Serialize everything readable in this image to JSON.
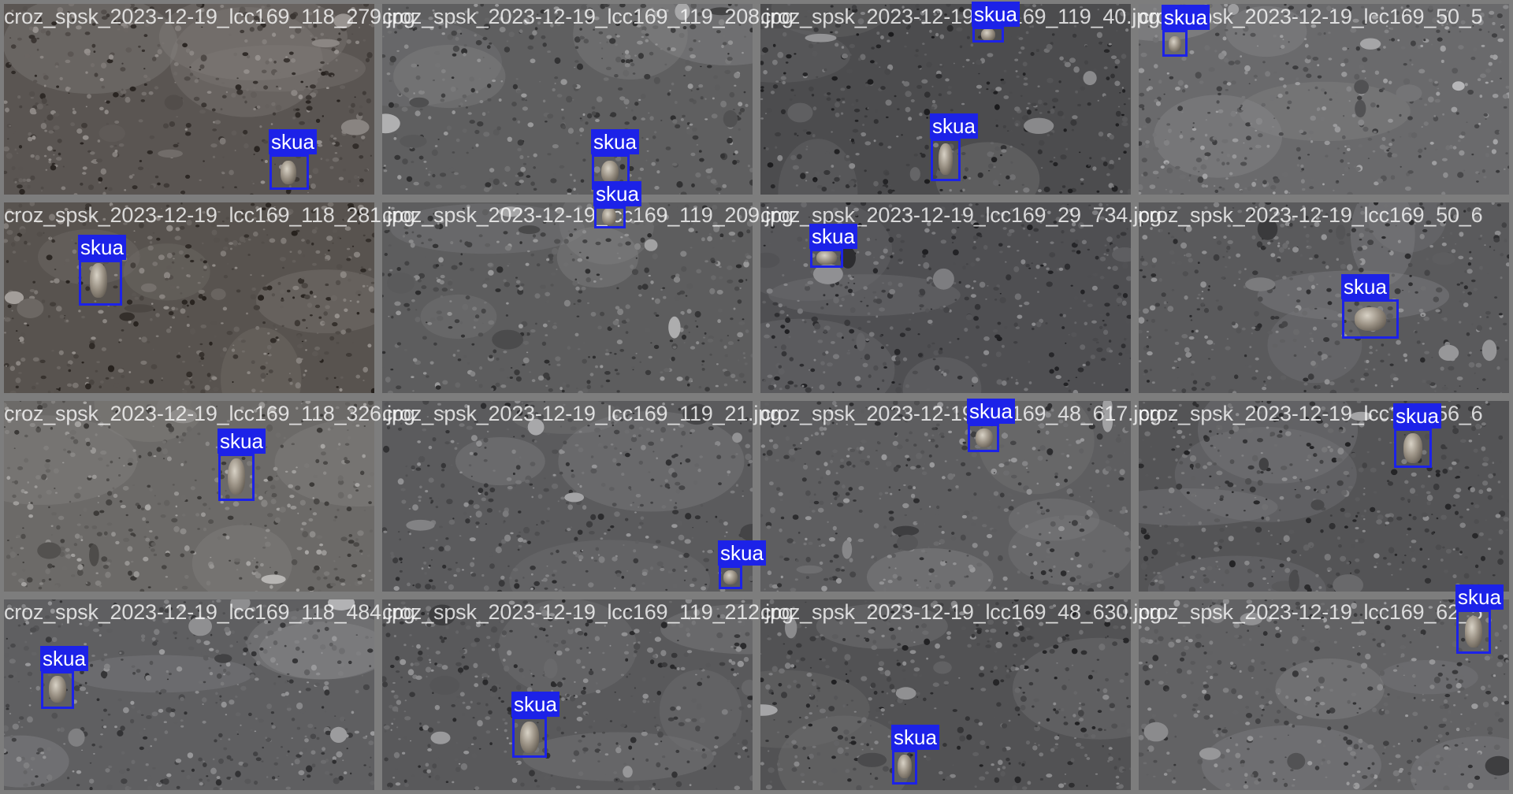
{
  "grid": {
    "rows": 4,
    "cols": 4
  },
  "class_label": "skua",
  "colors": {
    "box": "#1c22e8",
    "label_bg": "#1c22e8",
    "label_text": "#ffffff",
    "tile_border": "#7d7d7d",
    "filename_text": "#ffffff"
  },
  "tiles": [
    {
      "filename": "croz_spsk_2023-12-19_lcc169_118_279.jpg",
      "detections": [
        {
          "label": "skua"
        }
      ]
    },
    {
      "filename": "croz_spsk_2023-12-19_lcc169_119_208.jpg",
      "detections": [
        {
          "label": "skua"
        },
        {
          "label": "skua"
        }
      ]
    },
    {
      "filename": "croz_spsk_2023-12-19_lcc169_119_40.jpg",
      "detections": [
        {
          "label": "skua"
        },
        {
          "label": "skua"
        }
      ]
    },
    {
      "filename": "croz_spsk_2023-12-19_lcc169_50_5",
      "detections": [
        {
          "label": "skua"
        }
      ]
    },
    {
      "filename": "croz_spsk_2023-12-19_lcc169_118_281.jpg",
      "detections": [
        {
          "label": "skua"
        }
      ]
    },
    {
      "filename": "croz_spsk_2023-12-19_lcc169_119_209.jpg",
      "detections": []
    },
    {
      "filename": "croz_spsk_2023-12-19_lcc169_29_734.jpg",
      "detections": [
        {
          "label": "skua"
        }
      ]
    },
    {
      "filename": "croz_spsk_2023-12-19_lcc169_50_6",
      "detections": [
        {
          "label": "skua"
        }
      ]
    },
    {
      "filename": "croz_spsk_2023-12-19_lcc169_118_326.jpg",
      "detections": [
        {
          "label": "skua"
        }
      ]
    },
    {
      "filename": "croz_spsk_2023-12-19_lcc169_119_21.jpg",
      "detections": [
        {
          "label": "skua"
        }
      ]
    },
    {
      "filename": "croz_spsk_2023-12-19_lcc169_48_617.jpg",
      "detections": [
        {
          "label": "skua"
        }
      ]
    },
    {
      "filename": "croz_spsk_2023-12-19_lcc169_56_6",
      "detections": [
        {
          "label": "skua"
        }
      ]
    },
    {
      "filename": "croz_spsk_2023-12-19_lcc169_118_484.jpg",
      "detections": [
        {
          "label": "skua"
        }
      ]
    },
    {
      "filename": "croz_spsk_2023-12-19_lcc169_119_212.jpg",
      "detections": [
        {
          "label": "skua"
        }
      ]
    },
    {
      "filename": "croz_spsk_2023-12-19_lcc169_48_630.jpg",
      "detections": [
        {
          "label": "skua"
        }
      ]
    },
    {
      "filename": "croz_spsk_2023-12-19_lcc169_62_5",
      "detections": [
        {
          "label": "skua"
        }
      ]
    }
  ]
}
